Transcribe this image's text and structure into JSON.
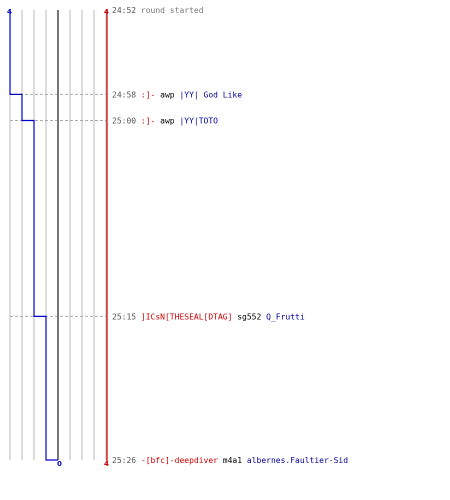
{
  "chart_data": {
    "type": "line",
    "title": "",
    "xlabel": "",
    "ylabel": "",
    "axis_labels": {
      "left_top": "4",
      "right_top": "4",
      "bottom_center": "0",
      "right_bottom": "4"
    },
    "x_range": [
      0,
      8
    ],
    "grid": "vertical",
    "colors": {
      "line": "#0000cc",
      "right_axis": "#cc0000",
      "center_axis": "#777777",
      "grid": "#bbbbbb",
      "dashed": "#aaaaaa"
    },
    "points": [
      {
        "time": "24:52",
        "value": 0
      },
      {
        "time": "24:58",
        "value": 1
      },
      {
        "time": "25:00",
        "value": 2
      },
      {
        "time": "25:15",
        "value": 3
      },
      {
        "time": "25:26",
        "value": 4
      }
    ],
    "events": [
      {
        "time": "24:52",
        "info": "round started"
      },
      {
        "time": "24:58",
        "killer": ":]- ",
        "weapon": "awp",
        "victim": "|YY| God Like"
      },
      {
        "time": "25:00",
        "killer": ":]- ",
        "weapon": "awp",
        "victim": "|YY|TOTO"
      },
      {
        "time": "25:15",
        "killer": "]ICsN[THESEAL[DTAG]",
        "weapon": "sg552",
        "victim": "Q_Frutti"
      },
      {
        "time": "25:26",
        "killer": "-[bfc]-deepdiver",
        "weapon": "m4a1",
        "victim": "albernes.Faultier-Sid"
      }
    ]
  }
}
